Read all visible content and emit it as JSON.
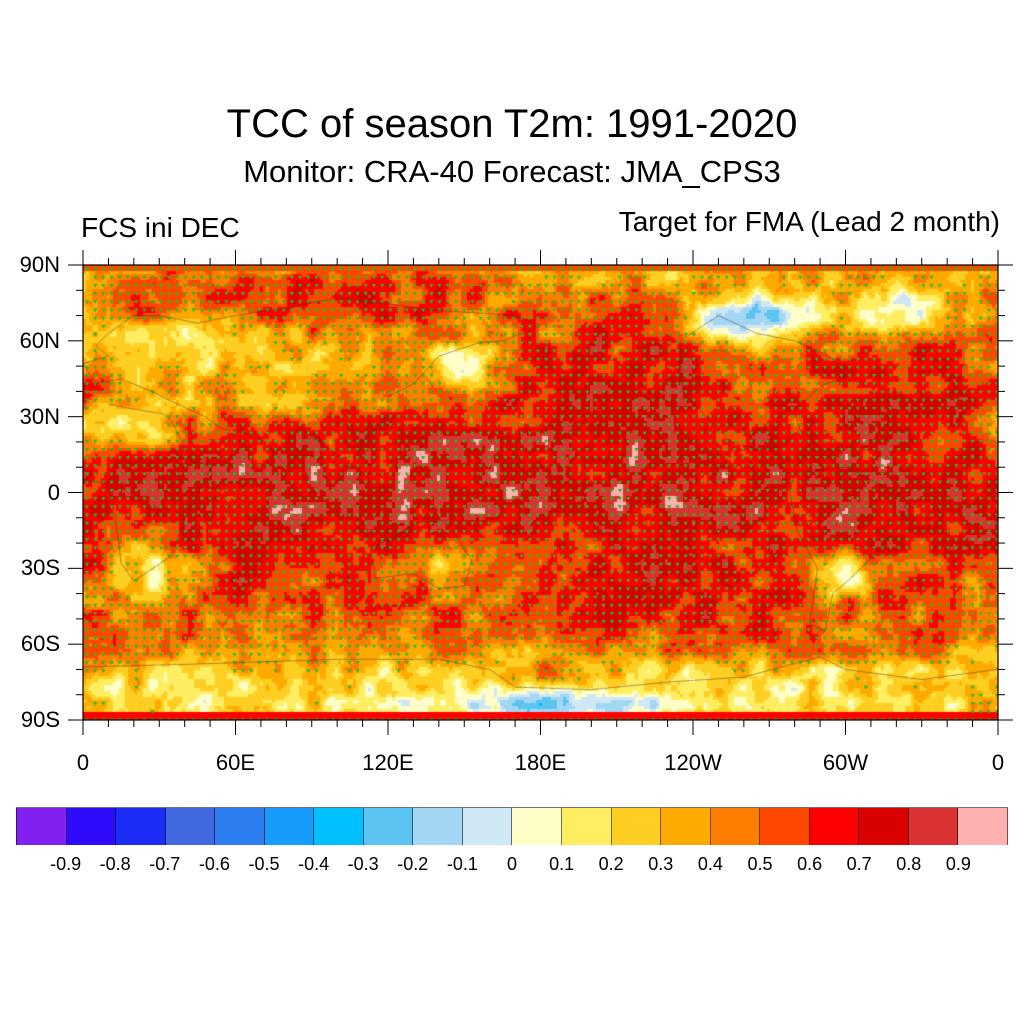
{
  "header": {
    "title": "TCC of season T2m: 1991-2020",
    "subtitle": "Monitor: CRA-40   Forecast: JMA_CPS3",
    "left_label": "FCS ini DEC",
    "right_label": "Target for FMA (Lead 2 month)"
  },
  "map": {
    "projection": "cylindrical-equidistant",
    "lon_range": [
      0,
      360
    ],
    "lat_range": [
      -90,
      90
    ],
    "variable": "temporal correlation coefficient (T2m)",
    "stipple_colors": {
      "positive_significant": "#1fbf1f",
      "negative_significant": "#9a2fe0"
    },
    "coastline_color": "#3a2a20",
    "y_axis": {
      "ticks": [
        {
          "lat": 90,
          "label": "90N"
        },
        {
          "lat": 60,
          "label": "60N"
        },
        {
          "lat": 30,
          "label": "30N"
        },
        {
          "lat": 0,
          "label": "0"
        },
        {
          "lat": -30,
          "label": "30S"
        },
        {
          "lat": -60,
          "label": "60S"
        },
        {
          "lat": -90,
          "label": "90S"
        }
      ],
      "minor_step_deg": 10
    },
    "x_axis": {
      "ticks": [
        {
          "lon": 0,
          "label": "0"
        },
        {
          "lon": 60,
          "label": "60E"
        },
        {
          "lon": 120,
          "label": "120E"
        },
        {
          "lon": 180,
          "label": "180E"
        },
        {
          "lon": 240,
          "label": "120W"
        },
        {
          "lon": 300,
          "label": "60W"
        },
        {
          "lon": 360,
          "label": "0"
        }
      ],
      "minor_step_deg": 10
    },
    "features": [
      {
        "name": "equatorial-central-pacific-max",
        "lon": 200,
        "lat": 0,
        "rlon": 40,
        "rlat": 5,
        "value": 0.92
      },
      {
        "name": "tropical-pacific-band",
        "lon": 190,
        "lat": 5,
        "rlon": 90,
        "rlat": 22,
        "value": 0.82
      },
      {
        "name": "indian-ocean-tropics",
        "lon": 80,
        "lat": -5,
        "rlon": 50,
        "rlat": 18,
        "value": 0.8
      },
      {
        "name": "maritime-continent",
        "lon": 125,
        "lat": 0,
        "rlon": 30,
        "rlat": 15,
        "value": 0.82
      },
      {
        "name": "tropical-atlantic-south-america",
        "lon": 310,
        "lat": 0,
        "rlon": 50,
        "rlat": 18,
        "value": 0.8
      },
      {
        "name": "africa-tropics",
        "lon": 20,
        "lat": 0,
        "rlon": 25,
        "rlat": 15,
        "value": 0.72
      },
      {
        "name": "north-pacific",
        "lon": 210,
        "lat": 45,
        "rlon": 35,
        "rlat": 18,
        "value": 0.78
      },
      {
        "name": "north-atlantic",
        "lon": 325,
        "lat": 45,
        "rlon": 30,
        "rlat": 15,
        "value": 0.72
      },
      {
        "name": "arctic-siberia",
        "lon": 90,
        "lat": 78,
        "rlon": 60,
        "rlat": 8,
        "value": 0.7
      },
      {
        "name": "southern-ocean-pacific",
        "lon": 240,
        "lat": -42,
        "rlon": 45,
        "rlat": 12,
        "value": 0.72
      },
      {
        "name": "southern-indian-ocean",
        "lon": 100,
        "lat": -40,
        "rlon": 40,
        "rlat": 10,
        "value": 0.62
      },
      {
        "name": "europe-low",
        "lon": 30,
        "lat": 55,
        "rlon": 25,
        "rlat": 10,
        "value": 0.08
      },
      {
        "name": "central-asia-low",
        "lon": 75,
        "lat": 45,
        "rlon": 30,
        "rlat": 12,
        "value": 0.25
      },
      {
        "name": "sahara-low",
        "lon": 15,
        "lat": 25,
        "rlon": 18,
        "rlat": 8,
        "value": 0.1
      },
      {
        "name": "okhotsk-low",
        "lon": 150,
        "lat": 50,
        "rlon": 12,
        "rlat": 6,
        "value": -0.05
      },
      {
        "name": "southern-africa-low",
        "lon": 28,
        "lat": -28,
        "rlon": 12,
        "rlat": 10,
        "value": 0.05
      },
      {
        "name": "australia-low",
        "lon": 140,
        "lat": -28,
        "rlon": 12,
        "rlat": 10,
        "value": 0.2
      },
      {
        "name": "northern-canada-negative",
        "lon": 265,
        "lat": 68,
        "rlon": 20,
        "rlat": 7,
        "value": -0.25
      },
      {
        "name": "greenland-low",
        "lon": 318,
        "lat": 72,
        "rlon": 15,
        "rlat": 7,
        "value": -0.05
      },
      {
        "name": "south-america-south-low",
        "lon": 298,
        "lat": -32,
        "rlon": 8,
        "rlat": 8,
        "value": -0.1
      },
      {
        "name": "antarctica-low",
        "lon": 180,
        "lat": -78,
        "rlon": 180,
        "rlat": 8,
        "value": 0.1
      },
      {
        "name": "ross-sea-negative",
        "lon": 190,
        "lat": -83,
        "rlon": 30,
        "rlat": 4,
        "value": -0.45
      },
      {
        "name": "antarctic-coast-warm",
        "lon": 180,
        "lat": -72,
        "rlon": 20,
        "rlat": 4,
        "value": 0.7
      }
    ]
  },
  "colorbar": {
    "levels": [
      "-0.9",
      "-0.8",
      "-0.7",
      "-0.6",
      "-0.5",
      "-0.4",
      "-0.3",
      "-0.2",
      "-0.1",
      "0",
      "0.1",
      "0.2",
      "0.3",
      "0.4",
      "0.5",
      "0.6",
      "0.7",
      "0.8",
      "0.9"
    ],
    "colors": [
      "#8120f0",
      "#2f0bfb",
      "#1a2cf5",
      "#4369e0",
      "#2c7ef0",
      "#169cfc",
      "#00bffd",
      "#5cc4f2",
      "#a3d6f2",
      "#cfe8f6",
      "#fffdc8",
      "#ffed62",
      "#ffce22",
      "#ffaa00",
      "#ff7e00",
      "#ff4700",
      "#ff0000",
      "#d90000",
      "#da3232",
      "#ffb0b0"
    ]
  }
}
